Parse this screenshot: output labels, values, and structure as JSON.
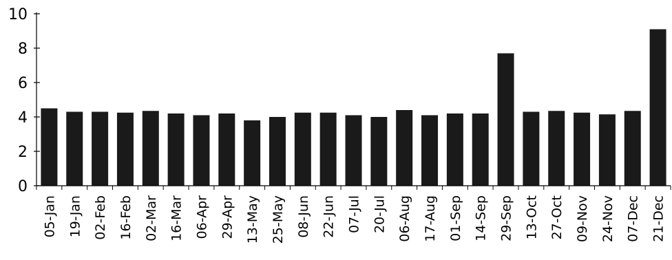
{
  "chart_data": {
    "type": "bar",
    "title": "",
    "xlabel": "",
    "ylabel": "",
    "ylim": [
      0,
      10
    ],
    "yticks": [
      0,
      2,
      4,
      6,
      8,
      10
    ],
    "grid": false,
    "legend": "none",
    "categories": [
      "05-Jan",
      "19-Jan",
      "02-Feb",
      "16-Feb",
      "02-Mar",
      "16-Mar",
      "06-Apr",
      "29-Apr",
      "13-May",
      "25-May",
      "08-Jun",
      "22-Jun",
      "07-Jul",
      "20-Jul",
      "06-Aug",
      "17-Aug",
      "01-Sep",
      "14-Sep",
      "29-Sep",
      "13-Oct",
      "27-Oct",
      "09-Nov",
      "24-Nov",
      "07-Dec",
      "21-Dec"
    ],
    "values": [
      4.5,
      4.3,
      4.3,
      4.25,
      4.35,
      4.2,
      4.1,
      4.2,
      3.8,
      4.0,
      4.25,
      4.25,
      4.1,
      4.0,
      4.4,
      4.1,
      4.2,
      4.2,
      7.7,
      4.3,
      4.35,
      4.25,
      4.15,
      4.35,
      9.1
    ],
    "colors": {
      "bar": "#1a1a1a",
      "axis": "#000000"
    }
  }
}
